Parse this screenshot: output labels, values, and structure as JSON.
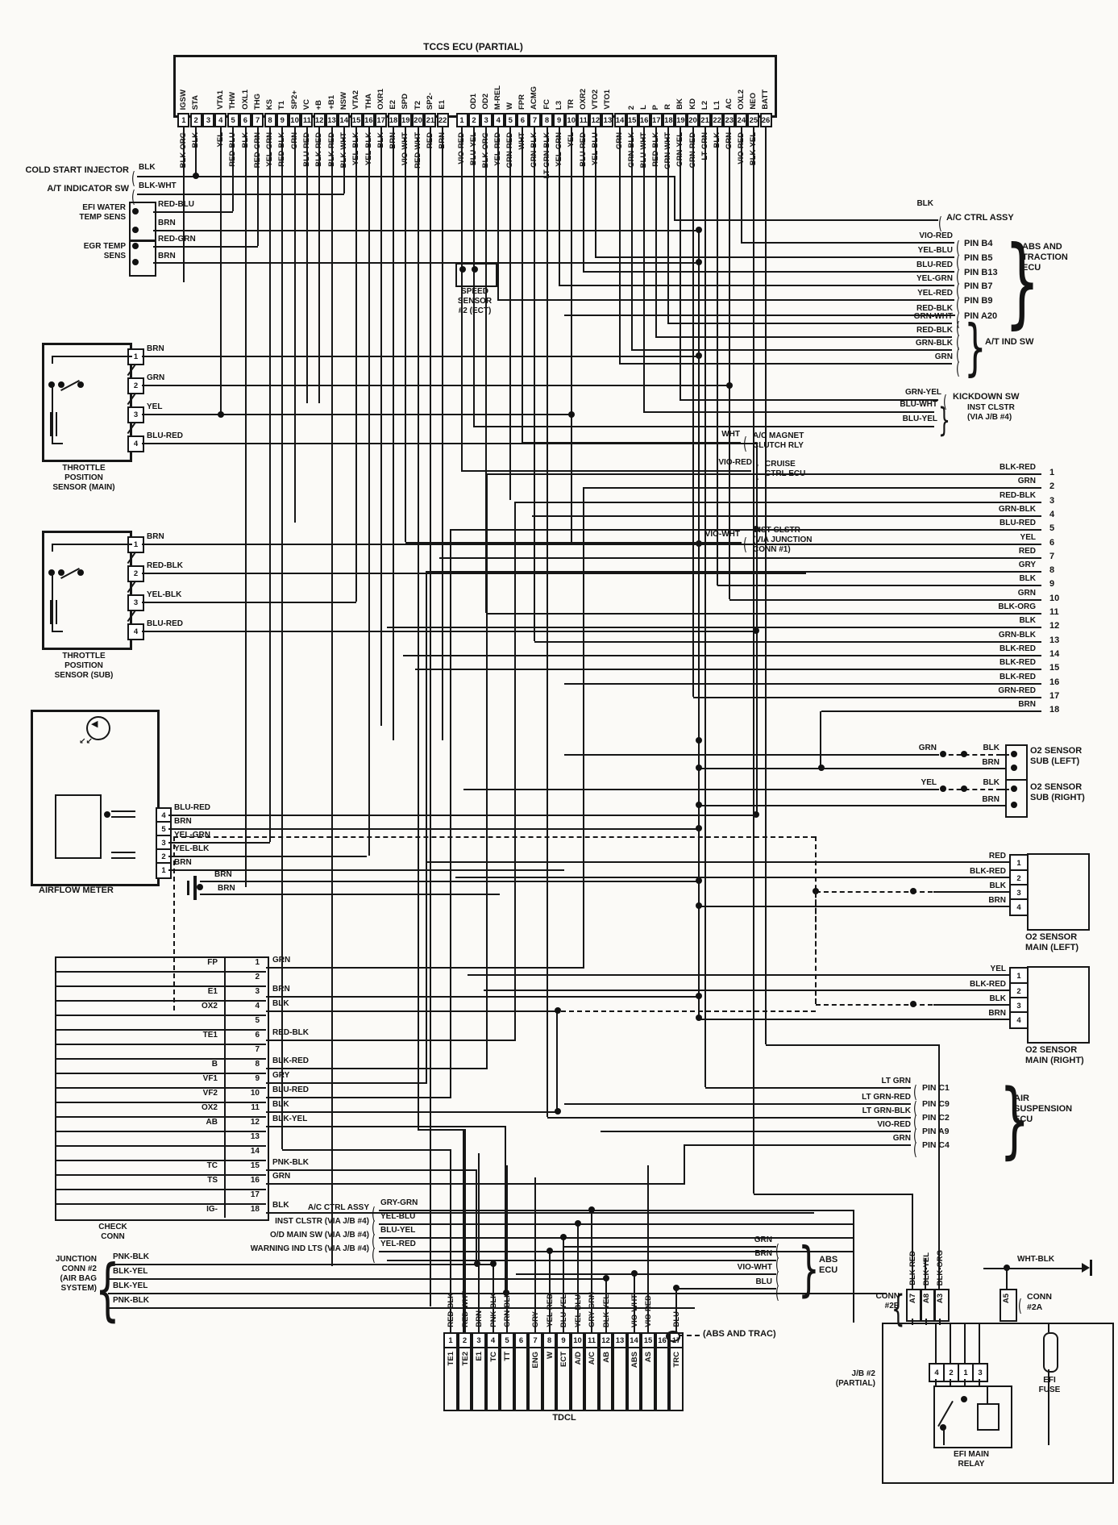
{
  "title": "TCCS ECU (PARTIAL)",
  "connector1": {
    "pins": [
      {
        "n": "1",
        "name": "IGSW",
        "color": "BLK-ORG"
      },
      {
        "n": "2",
        "name": "STA",
        "color": "BLK"
      },
      {
        "n": "3",
        "name": "",
        "color": ""
      },
      {
        "n": "4",
        "name": "VTA1",
        "color": "YEL"
      },
      {
        "n": "5",
        "name": "THW",
        "color": "RED-BLU"
      },
      {
        "n": "6",
        "name": "OXL1",
        "color": "BLK"
      },
      {
        "n": "7",
        "name": "THG",
        "color": "RED-GRN"
      },
      {
        "n": "8",
        "name": "KS",
        "color": "YEL-GRN"
      },
      {
        "n": "9",
        "name": "T1",
        "color": "RED-BLK"
      },
      {
        "n": "10",
        "name": "SP2+",
        "color": "GRN"
      },
      {
        "n": "11",
        "name": "VC",
        "color": "BLU-RED"
      },
      {
        "n": "12",
        "name": "+B",
        "color": "BLK-RED"
      },
      {
        "n": "13",
        "name": "+B1",
        "color": "BLK-RED"
      },
      {
        "n": "14",
        "name": "NSW",
        "color": "BLK-WHT"
      },
      {
        "n": "15",
        "name": "VTA2",
        "color": "YEL-BLK"
      },
      {
        "n": "16",
        "name": "THA",
        "color": "YEL-BLK"
      },
      {
        "n": "17",
        "name": "OXR1",
        "color": "BLK"
      },
      {
        "n": "18",
        "name": "E2",
        "color": "BRN"
      },
      {
        "n": "19",
        "name": "SPD",
        "color": "VIO-WHT"
      },
      {
        "n": "20",
        "name": "T2",
        "color": "RED-WHT"
      },
      {
        "n": "21",
        "name": "SP2-",
        "color": "RED"
      },
      {
        "n": "22",
        "name": "E1",
        "color": "BRN"
      }
    ]
  },
  "connector2": {
    "pins": [
      {
        "n": "1",
        "name": "",
        "color": "VIO-RED"
      },
      {
        "n": "2",
        "name": "OD1",
        "color": "BLU-YEL"
      },
      {
        "n": "3",
        "name": "OD2",
        "color": "BLK-ORG"
      },
      {
        "n": "4",
        "name": "M-REL",
        "color": "YEL-RED"
      },
      {
        "n": "5",
        "name": "W",
        "color": "GRN-RED"
      },
      {
        "n": "6",
        "name": "FPR",
        "color": "WHT"
      },
      {
        "n": "7",
        "name": "ACMG",
        "color": "GRN-BLK"
      },
      {
        "n": "8",
        "name": "FC",
        "color": "LT GRN-BLK"
      },
      {
        "n": "9",
        "name": "L3",
        "color": "YEL-GRN"
      },
      {
        "n": "10",
        "name": "TR",
        "color": "YEL"
      },
      {
        "n": "11",
        "name": "OXR2",
        "color": "BLU-RED"
      },
      {
        "n": "12",
        "name": "VTO2",
        "color": "YEL-BLU"
      },
      {
        "n": "13",
        "name": "VTO1",
        "color": ""
      },
      {
        "n": "14",
        "name": "",
        "color": "GRN"
      },
      {
        "n": "15",
        "name": "2",
        "color": "GRN-BLK"
      },
      {
        "n": "16",
        "name": "L",
        "color": "BLU-WHT"
      },
      {
        "n": "17",
        "name": "P",
        "color": "RED-BLK"
      },
      {
        "n": "18",
        "name": "R",
        "color": "GRN-WHT"
      },
      {
        "n": "19",
        "name": "BK",
        "color": "GRN-YEL"
      },
      {
        "n": "20",
        "name": "KD",
        "color": "GRN-RED"
      },
      {
        "n": "21",
        "name": "L2",
        "color": "LT GRN"
      },
      {
        "n": "22",
        "name": "L1",
        "color": "BLK"
      },
      {
        "n": "23",
        "name": "AC",
        "color": "GRN"
      },
      {
        "n": "24",
        "name": "OXL2",
        "color": "VIO-RED"
      },
      {
        "n": "25",
        "name": "NEO",
        "color": "BLK-YEL"
      },
      {
        "n": "26",
        "name": "BATT",
        "color": ""
      }
    ]
  },
  "left": {
    "cold_start_injector": {
      "label": "COLD START INJECTOR",
      "wire": "BLK"
    },
    "at_indicator_sw": {
      "label": "A/T INDICATOR SW",
      "wire": "BLK-WHT"
    },
    "efi_water_temp": {
      "label": "EFI WATER\nTEMP SENS",
      "wires": [
        "RED-BLU",
        "BRN"
      ]
    },
    "egr_temp": {
      "label": "EGR TEMP\nSENS",
      "wires": [
        "RED-GRN",
        "BRN"
      ]
    },
    "tps_main": {
      "label": "THROTTLE\nPOSITION\nSENSOR (MAIN)",
      "pins": [
        {
          "n": "1",
          "color": "BRN"
        },
        {
          "n": "2",
          "color": "GRN"
        },
        {
          "n": "3",
          "color": "YEL"
        },
        {
          "n": "4",
          "color": "BLU-RED"
        }
      ]
    },
    "tps_sub": {
      "label": "THROTTLE\nPOSITION\nSENSOR (SUB)",
      "pins": [
        {
          "n": "1",
          "color": "BRN"
        },
        {
          "n": "2",
          "color": "RED-BLK"
        },
        {
          "n": "3",
          "color": "YEL-BLK"
        },
        {
          "n": "4",
          "color": "BLU-RED"
        }
      ]
    },
    "airflow": {
      "label": "AIRFLOW METER",
      "pins": [
        {
          "n": "4",
          "color": "BLU-RED"
        },
        {
          "n": "5",
          "color": "BRN"
        },
        {
          "n": "3",
          "color": "YEL-GRN"
        },
        {
          "n": "2",
          "color": "YEL-BLK"
        },
        {
          "n": "1",
          "color": "BRN"
        }
      ],
      "ground_wires": [
        "BRN",
        "BR N"
      ]
    },
    "check_conn": {
      "label": "CHECK\nCONN",
      "rows": [
        {
          "n": "1",
          "name": "FP",
          "color": "GRN"
        },
        {
          "n": "2",
          "name": "",
          "color": ""
        },
        {
          "n": "3",
          "name": "E1",
          "color": "BRN"
        },
        {
          "n": "4",
          "name": "OX2",
          "color": "BLK"
        },
        {
          "n": "5",
          "name": "",
          "color": ""
        },
        {
          "n": "6",
          "name": "TE1",
          "color": "RED-BLK"
        },
        {
          "n": "7",
          "name": "",
          "color": ""
        },
        {
          "n": "8",
          "name": "B",
          "color": "BLK-RED"
        },
        {
          "n": "9",
          "name": "VF1",
          "color": "GRY"
        },
        {
          "n": "10",
          "name": "VF2",
          "color": "BLU-RED"
        },
        {
          "n": "11",
          "name": "OX2",
          "color": "BLK"
        },
        {
          "n": "12",
          "name": "AB",
          "color": "BLK-YEL"
        },
        {
          "n": "13",
          "name": "",
          "color": ""
        },
        {
          "n": "14",
          "name": "",
          "color": ""
        },
        {
          "n": "15",
          "name": "TC",
          "color": "PNK-BLK"
        },
        {
          "n": "16",
          "name": "TS",
          "color": "GRN"
        },
        {
          "n": "17",
          "name": "",
          "color": ""
        },
        {
          "n": "18",
          "name": "IG-",
          "color": "BLK"
        }
      ]
    },
    "junction_conn2": {
      "label": "JUNCTION\nCONN #2\n(AIR BAG\nSYSTEM)",
      "wires": [
        "PNK-BLK",
        "BLK-YEL",
        "BLK-YEL",
        "PNK-BLK"
      ]
    }
  },
  "middle": {
    "speed_sensor": {
      "label": "SPEED\nSENSOR\n#2 (ECT)"
    },
    "dest_links": [
      {
        "wire": "GRY-GRN",
        "label": "A/C CTRL ASSY"
      },
      {
        "wire": "YEL-BLU",
        "label": "INST CLSTR (VIA J/B #4)"
      },
      {
        "wire": "BLU-YEL",
        "label": "O/D MAIN SW (VIA J/B #4)"
      },
      {
        "wire": "YEL-RED",
        "label": "WARNING IND LTS (VIA J/B #4)"
      }
    ]
  },
  "right": {
    "ac_ctrl_assy": {
      "wire": "BLK",
      "label": "A/C CTRL ASSY"
    },
    "abs_traction": {
      "label": "ABS AND\nTRACTION\nECU",
      "pins": [
        {
          "wire": "VIO-RED",
          "pin": "PIN B4"
        },
        {
          "wire": "YEL-BLU",
          "pin": "PIN B5"
        },
        {
          "wire": "BLU-RED",
          "pin": "PIN B13"
        },
        {
          "wire": "YEL-GRN",
          "pin": "PIN B7"
        },
        {
          "wire": "YEL-RED",
          "pin": "PIN B9"
        },
        {
          "wire": "RED-BLK",
          "pin": "PIN A20"
        }
      ]
    },
    "at_ind_sw": {
      "label": "A/T IND SW",
      "wires": [
        "GRN-WHT",
        "RED-BLK",
        "GRN-BLK",
        "GRN"
      ]
    },
    "kickdown": {
      "wire": "GRN-YEL",
      "label": "KICKDOWN SW"
    },
    "inst_clstr_jb4": {
      "label": "INST CLSTR\n(VIA J/B #4)",
      "wires": [
        "BLU-WHT",
        "BLU-YEL"
      ]
    },
    "ac_magnet": {
      "wire": "WHT",
      "label": "A/C MAGNET\nCLUTCH RLY"
    },
    "cruise": {
      "wire": "VIO-RED",
      "label": "CRUISE\nCTRL ECU"
    },
    "inst_clstr_jc1": {
      "wire": "VIO-WHT",
      "label": "INST CLSTR\n(VIA JUNCTION\nCONN #1)"
    },
    "numbered": [
      {
        "n": "1",
        "color": "BLK-RED"
      },
      {
        "n": "2",
        "color": "GRN"
      },
      {
        "n": "3",
        "color": "RED-BLK"
      },
      {
        "n": "4",
        "color": "GRN-BLK"
      },
      {
        "n": "5",
        "color": "BLU-RED"
      },
      {
        "n": "6",
        "color": "YEL"
      },
      {
        "n": "7",
        "color": "RED"
      },
      {
        "n": "8",
        "color": "GRY"
      },
      {
        "n": "9",
        "color": "BLK"
      },
      {
        "n": "10",
        "color": "GRN"
      },
      {
        "n": "11",
        "color": "BLK-ORG"
      },
      {
        "n": "12",
        "color": "BLK"
      },
      {
        "n": "13",
        "color": "GRN-BLK"
      },
      {
        "n": "14",
        "color": "BLK-RED"
      },
      {
        "n": "15",
        "color": "BLK-RED"
      },
      {
        "n": "16",
        "color": "BLK-RED"
      },
      {
        "n": "17",
        "color": "GRN-RED"
      },
      {
        "n": "18",
        "color": "BRN"
      }
    ],
    "o2_sub_left": {
      "label": "O2 SENSOR\nSUB (LEFT)",
      "wires": [
        "GRN",
        "BLK",
        "BRN"
      ]
    },
    "o2_sub_right": {
      "label": "O2 SENSOR\nSUB (RIGHT)",
      "wires": [
        "YEL",
        "BLK",
        "BRN"
      ]
    },
    "o2_main_left": {
      "label": "O2 SENSOR\nMAIN (LEFT)",
      "pins": [
        {
          "n": "1",
          "color": "RED"
        },
        {
          "n": "2",
          "color": "BLK-RED"
        },
        {
          "n": "3",
          "color": "BLK"
        },
        {
          "n": "4",
          "color": "BRN"
        }
      ]
    },
    "o2_main_right": {
      "label": "O2 SENSOR\nMAIN (RIGHT)",
      "pins": [
        {
          "n": "1",
          "color": "YEL"
        },
        {
          "n": "2",
          "color": "BLK-RED"
        },
        {
          "n": "3",
          "color": "BLK"
        },
        {
          "n": "4",
          "color": "BRN"
        }
      ]
    },
    "air_susp": {
      "label": "AIR\nSUSPENSION\nECU",
      "pins": [
        {
          "wire": "LT GRN",
          "pin": "PIN C1"
        },
        {
          "wire": "LT GRN-RED",
          "pin": "PIN C9"
        },
        {
          "wire": "LT GRN-BLK",
          "pin": "PIN C2"
        },
        {
          "wire": "VIO-RED",
          "pin": "PIN A9"
        },
        {
          "wire": "GRN",
          "pin": "PIN C4"
        }
      ]
    }
  },
  "bottom": {
    "tdcl": {
      "label": "TDCL",
      "pins": [
        {
          "n": "1",
          "name": "TE1",
          "color": "RED-BLK"
        },
        {
          "n": "2",
          "name": "TE2",
          "color": "RED-WHT"
        },
        {
          "n": "3",
          "name": "E1",
          "color": "BRN"
        },
        {
          "n": "4",
          "name": "TC",
          "color": "PNK-BLK"
        },
        {
          "n": "5",
          "name": "TT",
          "color": "GRN-BLK"
        },
        {
          "n": "6",
          "name": "",
          "color": ""
        },
        {
          "n": "7",
          "name": "ENG",
          "color": "GRY"
        },
        {
          "n": "8",
          "name": "W",
          "color": "YEL-RED"
        },
        {
          "n": "9",
          "name": "ECT",
          "color": "BLU-YEL"
        },
        {
          "n": "10",
          "name": "A/D",
          "color": "YEL-BLU"
        },
        {
          "n": "11",
          "name": "A/C",
          "color": "GRY-GRN"
        },
        {
          "n": "12",
          "name": "AB",
          "color": "BLK-YEL"
        },
        {
          "n": "13",
          "name": "",
          "color": ""
        },
        {
          "n": "14",
          "name": "ABS",
          "color": "VIO-WHT"
        },
        {
          "n": "15",
          "name": "AS",
          "color": "VIO-RED"
        },
        {
          "n": "16",
          "name": "",
          "color": ""
        },
        {
          "n": "17",
          "name": "TRC",
          "color": "BLU"
        }
      ]
    },
    "abs_ecu": {
      "label": "ABS\nECU",
      "wires": [
        "GRN",
        "BRN",
        "VIO-WHT",
        "BLU"
      ]
    },
    "abs_trac_note": "(ABS AND TRAC)",
    "conn2b": {
      "label": "CONN\n#2B",
      "pins": [
        "A7",
        "A8",
        "A3"
      ],
      "pin_colors": [
        "BLK-RED",
        "BLK-YEL",
        "BLK-ORG"
      ]
    },
    "conn2a": {
      "label": "CONN\n#2A",
      "pin": "A5",
      "wire": "WHT-BLK"
    },
    "jb2": "J/B #2\n(PARTIAL)",
    "relay": {
      "label": "EFI MAIN\nRELAY",
      "terminals": [
        "4",
        "2",
        "1",
        "3"
      ]
    },
    "efi_fuse": "EFI\nFUSE"
  }
}
